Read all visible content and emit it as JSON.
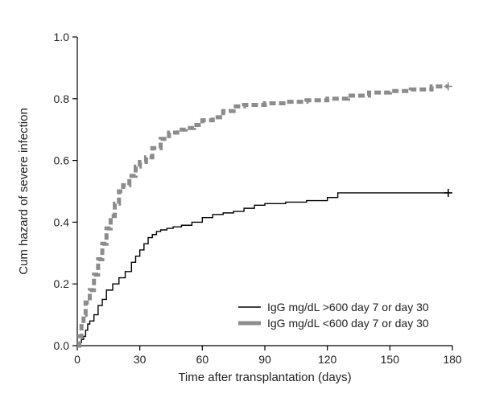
{
  "chart_data": {
    "type": "line",
    "title": "",
    "xlabel": "Time after transplantation (days)",
    "ylabel": "Cum hazard of severe infection",
    "xlim": [
      0,
      180
    ],
    "ylim": [
      0,
      1.0
    ],
    "x_ticks": [
      0,
      30,
      60,
      90,
      120,
      150,
      180
    ],
    "x_tick_labels": [
      "0",
      "30",
      "60",
      "90",
      "120",
      "150",
      "180"
    ],
    "y_ticks": [
      0,
      0.2,
      0.4,
      0.6,
      0.8,
      1.0
    ],
    "y_tick_labels": [
      "0.0",
      "0.2",
      "0.4",
      "0.6",
      "0.8",
      "1.0"
    ],
    "grid": false,
    "legend_position": "bottom-right",
    "series": [
      {
        "name": "IgG mg/dL >600 day 7 or day 30",
        "style": "solid-thin",
        "color": "#000000",
        "x": [
          0,
          1,
          2,
          3,
          4,
          5,
          6,
          8,
          10,
          12,
          14,
          17,
          20,
          23,
          26,
          28,
          30,
          32,
          34,
          36,
          38,
          40,
          43,
          46,
          50,
          55,
          60,
          65,
          70,
          75,
          80,
          85,
          90,
          100,
          110,
          120,
          125,
          130,
          150,
          178
        ],
        "y": [
          0,
          0.01,
          0.02,
          0.03,
          0.05,
          0.07,
          0.08,
          0.1,
          0.13,
          0.15,
          0.18,
          0.2,
          0.22,
          0.24,
          0.27,
          0.29,
          0.31,
          0.33,
          0.35,
          0.36,
          0.37,
          0.375,
          0.38,
          0.385,
          0.39,
          0.4,
          0.415,
          0.425,
          0.43,
          0.435,
          0.445,
          0.455,
          0.46,
          0.465,
          0.47,
          0.48,
          0.495,
          0.495,
          0.495,
          0.495
        ],
        "censor_x": 178,
        "censor_y": 0.495
      },
      {
        "name": "IgG mg/dL <600 day 7 or day 30",
        "style": "dashed-thick",
        "color": "#8c8c8c",
        "x": [
          0,
          1,
          2,
          3,
          4,
          6,
          8,
          10,
          12,
          14,
          16,
          18,
          20,
          22,
          25,
          28,
          30,
          33,
          36,
          40,
          44,
          48,
          52,
          56,
          60,
          65,
          70,
          75,
          80,
          90,
          100,
          110,
          120,
          130,
          140,
          150,
          160,
          170,
          178
        ],
        "y": [
          0,
          0.03,
          0.07,
          0.1,
          0.14,
          0.18,
          0.23,
          0.28,
          0.33,
          0.38,
          0.42,
          0.46,
          0.5,
          0.52,
          0.55,
          0.58,
          0.595,
          0.61,
          0.64,
          0.67,
          0.69,
          0.7,
          0.705,
          0.715,
          0.73,
          0.74,
          0.76,
          0.775,
          0.78,
          0.785,
          0.79,
          0.795,
          0.8,
          0.81,
          0.82,
          0.825,
          0.83,
          0.84,
          0.84
        ],
        "censor_x": 178,
        "censor_y": 0.84
      }
    ]
  }
}
